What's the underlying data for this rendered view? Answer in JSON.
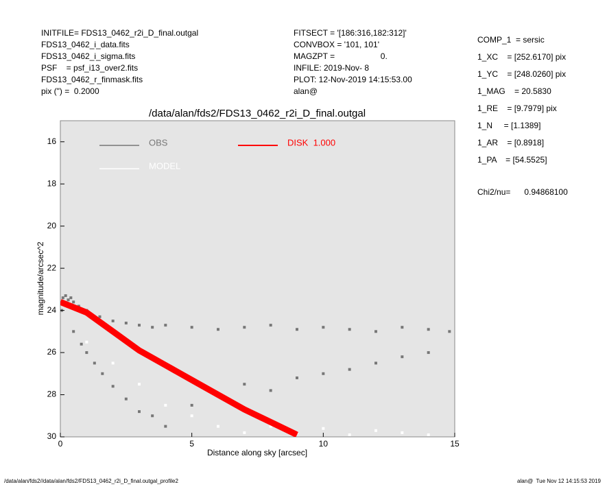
{
  "header": {
    "left": [
      "INITFILE= FDS13_0462_r2i_D_final.outgal",
      "FDS13_0462_i_data.fits",
      "FDS13_0462_i_sigma.fits",
      "PSF    = psf_i13_over2.fits",
      "FDS13_0462_r_finmask.fits",
      "pix (\") =  0.2000"
    ],
    "middle": [
      "FITSECT = '[186:316,182:312]'",
      "CONVBOX = '101, 101'",
      "MAGZPT =                    0.",
      "INFILE: 2019-Nov- 8",
      "PLOT: 12-Nov-2019 14:15:53.00",
      "alan@"
    ],
    "right": [
      "COMP_1  = sersic",
      "1_XC    = [252.6170] pix",
      "1_YC    = [248.0260] pix",
      "1_MAG    = 20.5830",
      "1_RE    = [9.7979] pix",
      "1_N     = [1.1389]",
      "1_AR    = [0.8918]",
      "1_PA    = [54.5525]"
    ],
    "chi2": "Chi2/nu=      0.94868100"
  },
  "footer": {
    "left": "/data/alan/fds2//data/alan/fds2/FDS13_0462_r2i_D_final.outgal_profile2",
    "right": "alan@  Tue Nov 12 14:15:53 2019"
  },
  "chart_data": {
    "type": "scatter",
    "title": "/data/alan/fds2/FDS13_0462_r2i_D_final.outgal",
    "x_label": "Distance along sky [arcsec]",
    "y_label": "magnitude/arcsec^2",
    "xlim": [
      0,
      15
    ],
    "ylim": [
      30,
      15
    ],
    "xticks": [
      0,
      5,
      10,
      15
    ],
    "yticks": [
      16,
      18,
      20,
      22,
      24,
      26,
      28,
      30
    ],
    "series": [
      {
        "name": "OBS",
        "color": "#777777",
        "x": [
          0.05,
          0.1,
          0.2,
          0.3,
          0.4,
          0.5,
          0.7,
          1,
          1.5,
          2,
          2.5,
          3,
          3.5,
          4,
          5,
          6,
          7,
          8,
          9,
          10,
          11,
          12,
          13,
          14,
          14.8,
          0.5,
          0.8,
          1,
          1.3,
          1.6,
          2,
          2.5,
          3,
          3.5,
          4,
          5,
          6,
          7,
          8,
          9,
          10,
          11,
          12,
          13,
          14
        ],
        "values": [
          24.0,
          23.4,
          23.3,
          23.5,
          23.4,
          23.6,
          23.8,
          24,
          24.3,
          24.5,
          24.6,
          24.7,
          24.8,
          24.7,
          24.8,
          24.9,
          24.8,
          24.7,
          24.9,
          24.8,
          24.9,
          25.0,
          24.8,
          24.9,
          25.0,
          25.0,
          25.6,
          26.0,
          26.5,
          27.0,
          27.6,
          28.2,
          28.8,
          29.0,
          29.5,
          28.5,
          28.0,
          27.5,
          27.8,
          27.2,
          27.0,
          26.8,
          26.5,
          26.2,
          26.0
        ]
      },
      {
        "name": "MODEL",
        "color": "#ffffff",
        "x": [
          1,
          2,
          3,
          4,
          5,
          6,
          7,
          8,
          9,
          10,
          11,
          12,
          13,
          14
        ],
        "values": [
          25.5,
          26.5,
          27.5,
          28.5,
          29,
          29.5,
          29.8,
          29.5,
          29.8,
          29.6,
          29.9,
          29.7,
          29.8,
          29.9
        ]
      },
      {
        "name": "DISK  1.000",
        "color": "#ff0000",
        "mode": "line",
        "x": [
          0,
          1,
          2,
          3,
          4,
          5,
          6,
          7,
          8,
          9
        ],
        "values": [
          23.6,
          24.1,
          25.0,
          25.9,
          26.6,
          27.3,
          28.0,
          28.7,
          29.3,
          29.9
        ]
      }
    ]
  }
}
